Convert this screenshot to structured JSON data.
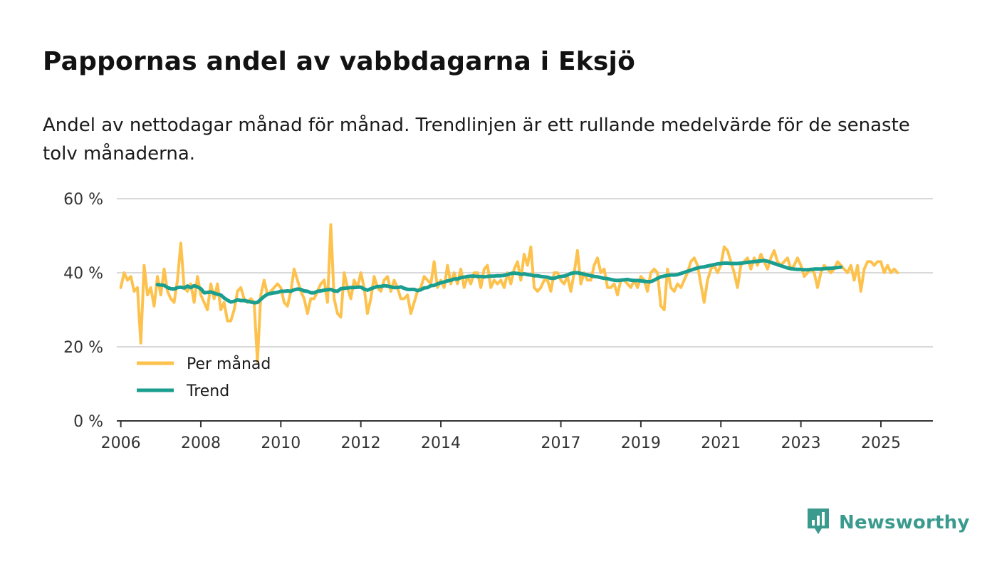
{
  "header": {
    "title": "Pappornas andel av vabbdagarna i Eksjö",
    "subtitle": "Andel av nettodagar månad för månad. Trendlinjen är ett rullande medelvärde för de senaste tolv månaderna."
  },
  "brand": {
    "name": "Newsworthy",
    "icon": "newsworthy-logo-icon",
    "color": "#3a9a8e"
  },
  "colors": {
    "monthly": "#fdc24d",
    "trend": "#1a9e8f",
    "grid": "#d9d9d9",
    "axis": "#333333"
  },
  "chart_data": {
    "type": "line",
    "title": "Pappornas andel av vabbdagarna i Eksjö",
    "xlabel": "",
    "ylabel": "",
    "xlim": [
      2005.9,
      2026.3
    ],
    "ylim": [
      0,
      60
    ],
    "y_ticks": [
      {
        "value": 0,
        "label": "0 %"
      },
      {
        "value": 20,
        "label": "20 %"
      },
      {
        "value": 40,
        "label": "40 %"
      },
      {
        "value": 60,
        "label": "60 %"
      }
    ],
    "x_ticks": [
      {
        "value": 2006.0,
        "label": "2006"
      },
      {
        "value": 2008.0,
        "label": "2008"
      },
      {
        "value": 2010.0,
        "label": "2010"
      },
      {
        "value": 2012.0,
        "label": "2012"
      },
      {
        "value": 2014.0,
        "label": "2014"
      },
      {
        "value": 2017.0,
        "label": "2017"
      },
      {
        "value": 2019.0,
        "label": "2019"
      },
      {
        "value": 2021.0,
        "label": "2021"
      },
      {
        "value": 2023.0,
        "label": "2023"
      },
      {
        "value": 2025.0,
        "label": "2025"
      }
    ],
    "grid": true,
    "legend": {
      "position": "bottom-left"
    },
    "series": [
      {
        "name": "Per månad",
        "color": "#fdc24d",
        "x_start": 2006.0,
        "x_step": 0.08333,
        "values": [
          36,
          40,
          38,
          39,
          35,
          36,
          21,
          42,
          34,
          36,
          31,
          39,
          34,
          41,
          35,
          33,
          32,
          38,
          48,
          36,
          35,
          37,
          32,
          39,
          34,
          32,
          30,
          37,
          33,
          37,
          30,
          32,
          27,
          27,
          30,
          35,
          36,
          33,
          32,
          33,
          32,
          16,
          34,
          38,
          34,
          35,
          36,
          37,
          36,
          32,
          31,
          35,
          41,
          38,
          35,
          33,
          29,
          33,
          33,
          35,
          37,
          38,
          32,
          53,
          33,
          29,
          28,
          40,
          36,
          33,
          38,
          36,
          40,
          36,
          29,
          33,
          39,
          36,
          35,
          38,
          39,
          35,
          38,
          36,
          33,
          33,
          34,
          29,
          32,
          35,
          36,
          39,
          38,
          37,
          43,
          36,
          38,
          36,
          42,
          37,
          40,
          37,
          41,
          36,
          39,
          37,
          40,
          40,
          36,
          41,
          42,
          36,
          38,
          37,
          38,
          36,
          40,
          37,
          41,
          43,
          38,
          45,
          42,
          47,
          36,
          35,
          36,
          38,
          38,
          35,
          40,
          40,
          38,
          37,
          39,
          35,
          40,
          46,
          37,
          40,
          38,
          38,
          42,
          44,
          40,
          41,
          36,
          36,
          37,
          34,
          38,
          38,
          37,
          36,
          38,
          36,
          39,
          38,
          35,
          40,
          41,
          40,
          31,
          30,
          41,
          36,
          35,
          37,
          36,
          38,
          40,
          43,
          44,
          42,
          37,
          32,
          38,
          41,
          42,
          40,
          42,
          47,
          46,
          43,
          40,
          36,
          42,
          43,
          44,
          41,
          44,
          42,
          45,
          43,
          41,
          44,
          46,
          43,
          42,
          43,
          44,
          41,
          42,
          44,
          42,
          39,
          40,
          41,
          40,
          36,
          40,
          42,
          41,
          40,
          41,
          43,
          42,
          41,
          40,
          42,
          38,
          42,
          35,
          41,
          43,
          43,
          42,
          43,
          43,
          40,
          42,
          40,
          41,
          40
        ]
      },
      {
        "name": "Trend",
        "color": "#1a9e8f",
        "x_start": 2006.917,
        "x_step": 0.08333,
        "values": [
          36.8,
          36.7,
          36.6,
          36.0,
          35.7,
          35.6,
          36.0,
          36.1,
          35.9,
          36.4,
          36.0,
          36.5,
          36.2,
          35.7,
          34.6,
          34.7,
          34.8,
          34.5,
          34.2,
          34.0,
          33.2,
          32.6,
          32.1,
          32.3,
          32.7,
          32.5,
          32.5,
          32.3,
          32.1,
          31.9,
          32.0,
          32.8,
          33.6,
          34.2,
          34.4,
          34.6,
          34.7,
          35.0,
          35.0,
          35.1,
          35.0,
          35.4,
          35.6,
          35.5,
          35.1,
          35.0,
          34.6,
          34.6,
          35.0,
          35.1,
          35.3,
          35.4,
          35.5,
          35.1,
          35.0,
          35.7,
          35.8,
          35.9,
          36.0,
          36.0,
          36.1,
          36.1,
          35.6,
          35.3,
          35.7,
          36.0,
          36.3,
          36.3,
          36.5,
          36.4,
          36.2,
          36.0,
          36.0,
          36.2,
          35.8,
          35.5,
          35.5,
          35.5,
          35.2,
          35.4,
          35.9,
          36.0,
          36.5,
          36.6,
          37.0,
          37.3,
          37.5,
          37.8,
          38.0,
          38.3,
          38.3,
          38.7,
          38.8,
          39.0,
          39.1,
          39.1,
          39.0,
          39.0,
          38.9,
          39.0,
          39.1,
          39.1,
          39.2,
          39.2,
          39.3,
          39.5,
          39.8,
          39.9,
          39.8,
          39.6,
          39.7,
          39.5,
          39.4,
          39.2,
          39.2,
          39.0,
          38.9,
          38.8,
          38.5,
          38.5,
          38.8,
          39.0,
          39.1,
          39.4,
          39.8,
          40.0,
          40.0,
          39.8,
          39.6,
          39.4,
          39.2,
          39.0,
          38.9,
          38.7,
          38.5,
          38.4,
          38.2,
          38.0,
          37.9,
          38.0,
          38.1,
          38.2,
          38.0,
          37.9,
          37.9,
          37.8,
          37.7,
          37.6,
          37.6,
          38.0,
          38.5,
          38.9,
          39.1,
          39.3,
          39.4,
          39.4,
          39.5,
          39.8,
          40.1,
          40.4,
          40.7,
          41.0,
          41.3,
          41.5,
          41.6,
          41.8,
          42.0,
          42.2,
          42.4,
          42.5,
          42.6,
          42.6,
          42.5,
          42.5,
          42.5,
          42.6,
          42.7,
          42.8,
          42.9,
          43.0,
          43.1,
          43.2,
          43.3,
          43.1,
          42.8,
          42.5,
          42.2,
          41.9,
          41.6,
          41.3,
          41.1,
          41.0,
          40.9,
          40.9,
          40.8,
          40.8,
          40.9,
          41.0,
          41.0,
          41.0,
          41.1,
          41.2,
          41.2,
          41.3,
          41.4,
          41.5
        ]
      }
    ]
  }
}
